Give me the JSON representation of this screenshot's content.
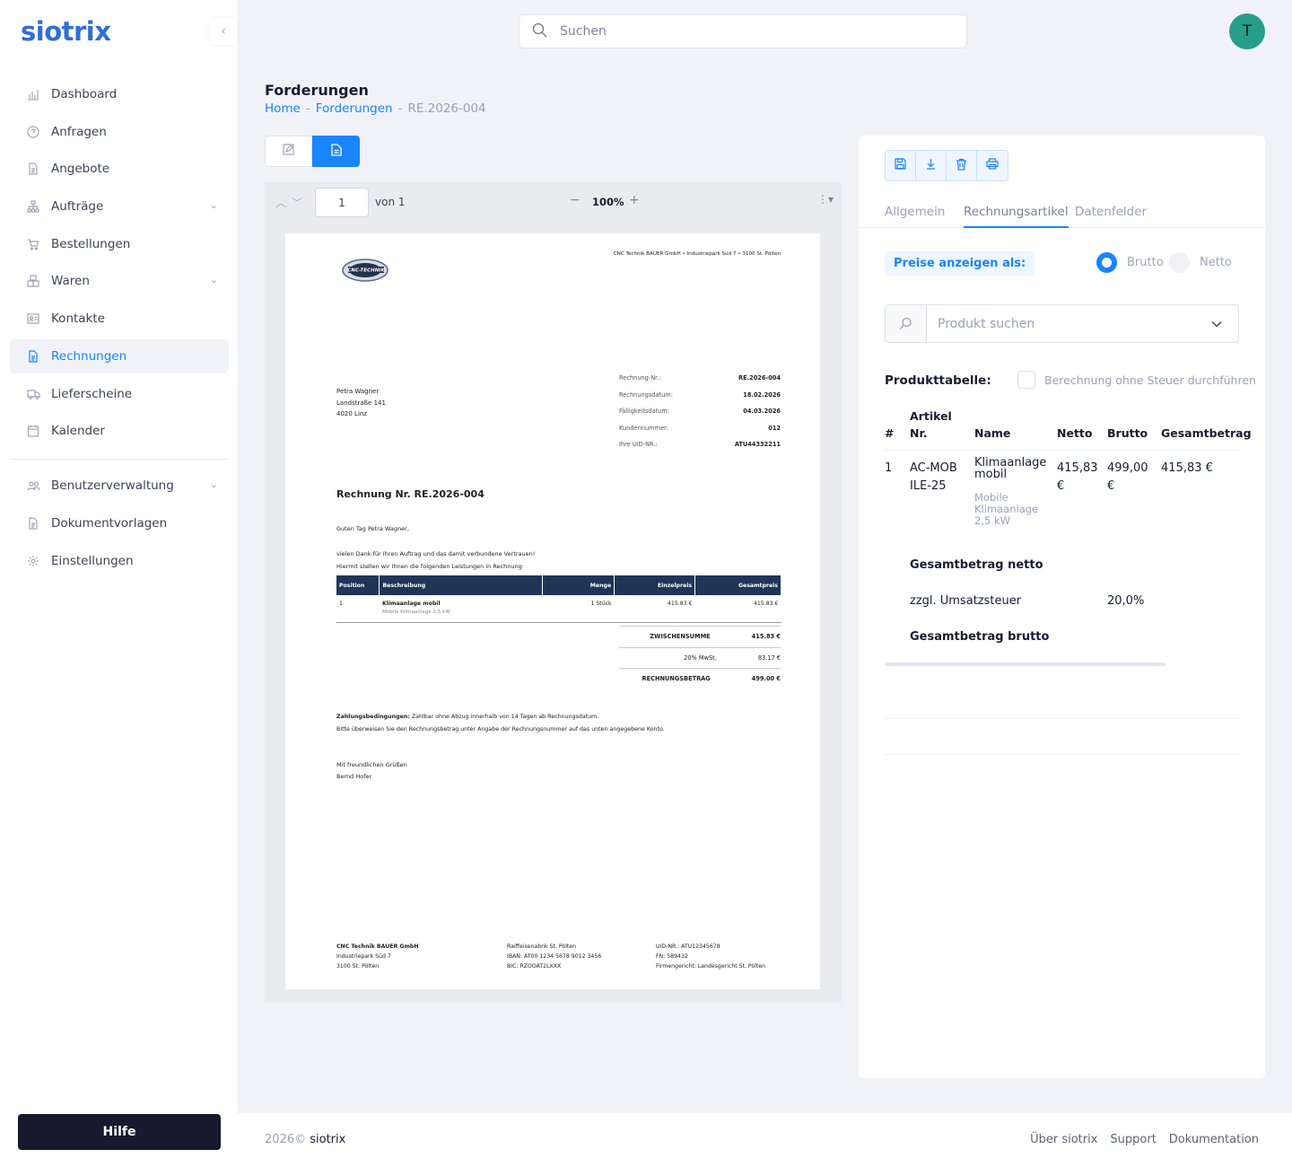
{
  "app": {
    "brand": "siotrix",
    "avatar_initial": "T"
  },
  "sidebar": {
    "items": [
      {
        "label": "Dashboard",
        "icon": "chart-icon"
      },
      {
        "label": "Anfragen",
        "icon": "question-icon"
      },
      {
        "label": "Angebote",
        "icon": "document-icon"
      },
      {
        "label": "Aufträge",
        "icon": "sitemap-icon",
        "expandable": true
      },
      {
        "label": "Bestellungen",
        "icon": "cart-icon"
      },
      {
        "label": "Waren",
        "icon": "boxes-icon",
        "expandable": true
      },
      {
        "label": "Kontakte",
        "icon": "contact-card-icon"
      },
      {
        "label": "Rechnungen",
        "icon": "invoice-icon",
        "active": true
      },
      {
        "label": "Lieferscheine",
        "icon": "truck-icon"
      },
      {
        "label": "Kalender",
        "icon": "calendar-icon"
      }
    ],
    "items2": [
      {
        "label": "Benutzerverwaltung",
        "icon": "users-icon",
        "expandable": true
      },
      {
        "label": "Dokumentvorlagen",
        "icon": "template-icon"
      },
      {
        "label": "Einstellungen",
        "icon": "gear-icon"
      }
    ],
    "help_label": "Hilfe"
  },
  "search": {
    "placeholder": "Suchen"
  },
  "page": {
    "title": "Forderungen",
    "breadcrumb": {
      "home": "Home",
      "sep": "-",
      "section": "Forderungen",
      "current": "RE.2026-004"
    }
  },
  "viewer": {
    "page": "1",
    "of_label": "von 1",
    "zoom": "100%"
  },
  "invoice": {
    "header_address": "CNC Technik BAUER GmbH • Industriepark Süd 7 • 3100 St. Pölten",
    "logo_text": "CNC-TECHNIK",
    "recipient": {
      "name": "Petra Wagner",
      "street": "Landstraße 141",
      "city": "4020 Linz"
    },
    "meta": [
      {
        "k": "Rechnung-Nr.:",
        "v": "RE.2026-004"
      },
      {
        "k": "Rechnungsdatum:",
        "v": "18.02.2026"
      },
      {
        "k": "Fälligkeitsdatum:",
        "v": "04.03.2026"
      },
      {
        "k": "Kundennummer:",
        "v": "012"
      },
      {
        "k": "Ihre UID-NR.:",
        "v": "ATU44332211"
      }
    ],
    "title": "Rechnung Nr. RE.2026-004",
    "greeting": "Guten Tag Petra Wagner,",
    "intro1": "vielen Dank für Ihren Auftrag und das damit verbundene Vertrauen!",
    "intro2": "Hiermit stellen wir Ihnen die folgenden Leistungen in Rechnung:",
    "columns": [
      "Position",
      "Beschreibung",
      "Menge",
      "Einzelpreis",
      "Gesamtpreis"
    ],
    "rows": [
      {
        "pos": "1",
        "name": "Klimaanlage mobil",
        "desc": "Mobile Klimaanlage 2,5 kW",
        "qty": "1 Stück",
        "unit": "415.83 €",
        "total": "415.83 €"
      }
    ],
    "totals": [
      {
        "k": "ZWISCHENSUMME",
        "v": "415.83 €",
        "bold": true
      },
      {
        "k": "20% MwSt.",
        "v": "83.17 €",
        "bold": false
      },
      {
        "k": "RECHNUNGSBETRAG",
        "v": "499.00 €",
        "bold": true
      }
    ],
    "terms_bold": "Zahlungsbedingungen:",
    "terms_text": " Zahlbar ohne Abzug innerhalb von 14 Tagen ab Rechnungsdatum.",
    "terms_line2": "Bitte überweisen Sie den Rechnungsbetrag unter Angabe der Rechnungsnummer auf das unten angegebene Konto.",
    "closing1": "Mit freundlichen Grüßen",
    "closing2": "Bernd Hofer",
    "footer": {
      "col1": [
        "CNC Technik BAUER GmbH",
        "Industriepark Süd 7",
        "3100 St. Pölten"
      ],
      "col2": [
        "Raiffeisenabnk St. Pölten",
        "IBAN: AT00 1234 5678 9012 3456",
        "BIC: RZOOAT2LXXX"
      ],
      "col3": [
        "UID-NR.: ATU12345678",
        "FN: 589432",
        "Firmengericht: Landesgericht St. Pölten"
      ]
    }
  },
  "panel": {
    "toolbar": [
      "save-icon",
      "download-icon",
      "trash-icon",
      "print-icon"
    ],
    "tabs": [
      "Allgemein",
      "Rechnungsartikel",
      "Datenfelder"
    ],
    "active_tab": "Rechnungsartikel",
    "price_label": "Preise anzeigen als:",
    "radio_brutto": "Brutto",
    "radio_netto": "Netto",
    "selected_price_mode": "Brutto",
    "product_search_placeholder": "Produkt suchen",
    "product_table_label": "Produkttabelle:",
    "tax_checkbox_label": "Berechnung ohne Steuer durchführen",
    "tax_checkbox_checked": false,
    "columns": {
      "num": "#",
      "art": "Artikel Nr.",
      "name": "Name",
      "netto": "Netto",
      "brutto": "Brutto",
      "total": "Gesamtbetrag"
    },
    "rows": [
      {
        "num": "1",
        "art": "AC-MOBILE-25",
        "name": "Klimaanlage mobil",
        "desc": "Mobile Klimaanlage 2,5 kW",
        "netto": "415,83 €",
        "brutto": "499,00 €",
        "total": "415,83 €"
      }
    ],
    "sum_netto_label": "Gesamtbetrag netto",
    "vat_label": "zzgl. Umsatzsteuer",
    "vat_value": "20,0%",
    "sum_brutto_label": "Gesamtbetrag brutto"
  },
  "footer": {
    "year": "2026©",
    "brand": "siotrix",
    "links": [
      "Über siotrix",
      "Support",
      "Dokumentation"
    ]
  }
}
